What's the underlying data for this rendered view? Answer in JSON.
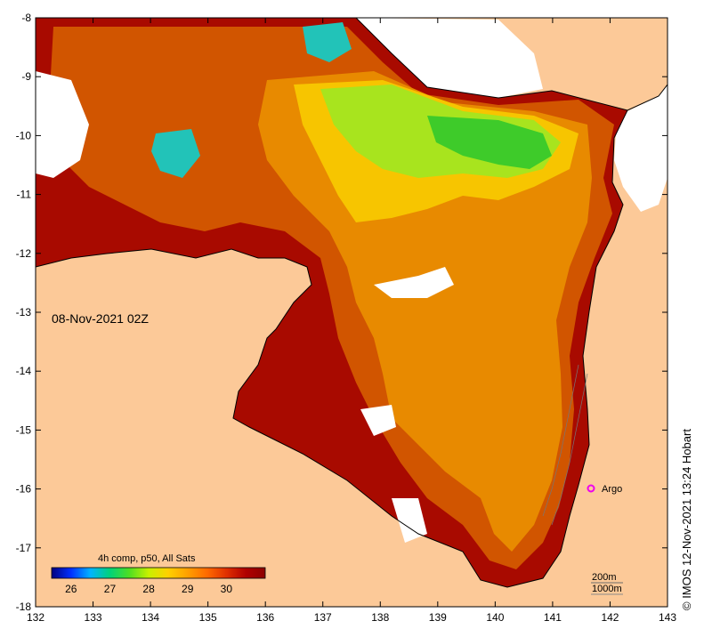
{
  "map": {
    "timestamp_label": "08-Nov-2021 02Z",
    "longitude_ticks": [
      "132",
      "133",
      "134",
      "135",
      "136",
      "137",
      "138",
      "139",
      "140",
      "141",
      "142",
      "143"
    ],
    "latitude_ticks": [
      "-8",
      "-9",
      "-10",
      "-11",
      "-12",
      "-13",
      "-14",
      "-15",
      "-16",
      "-17",
      "-18"
    ],
    "credit": "© IMOS 12-Nov-2021 13:24 Hobart",
    "argo_label": "Argo",
    "isobath_labels": [
      "200m",
      "1000m"
    ]
  },
  "colorbar": {
    "title": "4h comp, p50, All Sats",
    "tick_labels": [
      "26",
      "27",
      "28",
      "29",
      "30"
    ],
    "value_range": [
      25.5,
      31
    ],
    "ticks": [
      26,
      27,
      28,
      29,
      30
    ],
    "colors": [
      "#00007f",
      "#0030ff",
      "#00b4ff",
      "#00d27a",
      "#4ede22",
      "#c8f000",
      "#ffd000",
      "#ffa000",
      "#ff6a00",
      "#e03000",
      "#b00000",
      "#8c0000"
    ]
  },
  "palette": {
    "land": "#fcc998",
    "no_data": "#ffffff",
    "sst_hot": "#a80a00",
    "sst_warm": "#d15500",
    "sst_orange": "#e88a00",
    "sst_yellow": "#f7c500",
    "sst_lime": "#a8e41e",
    "sst_green": "#3ecb2a",
    "sst_cyan": "#22c3b8",
    "argo_marker": "#ee00ee"
  }
}
